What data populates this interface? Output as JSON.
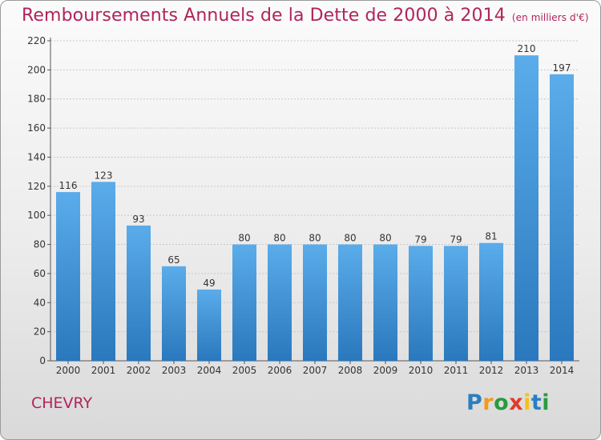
{
  "title": "Remboursements Annuels de la Dette de 2000 à 2014",
  "subtitle": "(en milliers d'€)",
  "town": "CHEVRY",
  "logo_text": "Proxiti",
  "chart_data": {
    "type": "bar",
    "categories": [
      "2000",
      "2001",
      "2002",
      "2003",
      "2004",
      "2005",
      "2006",
      "2007",
      "2008",
      "2009",
      "2010",
      "2011",
      "2012",
      "2013",
      "2014"
    ],
    "values": [
      116,
      123,
      93,
      65,
      49,
      80,
      80,
      80,
      80,
      80,
      79,
      79,
      81,
      210,
      197
    ],
    "ylim": [
      0,
      220
    ],
    "yticks": [
      0,
      20,
      40,
      60,
      80,
      100,
      120,
      140,
      160,
      180,
      200,
      220
    ],
    "grid": true,
    "bar_color": "#3d8fd6"
  }
}
